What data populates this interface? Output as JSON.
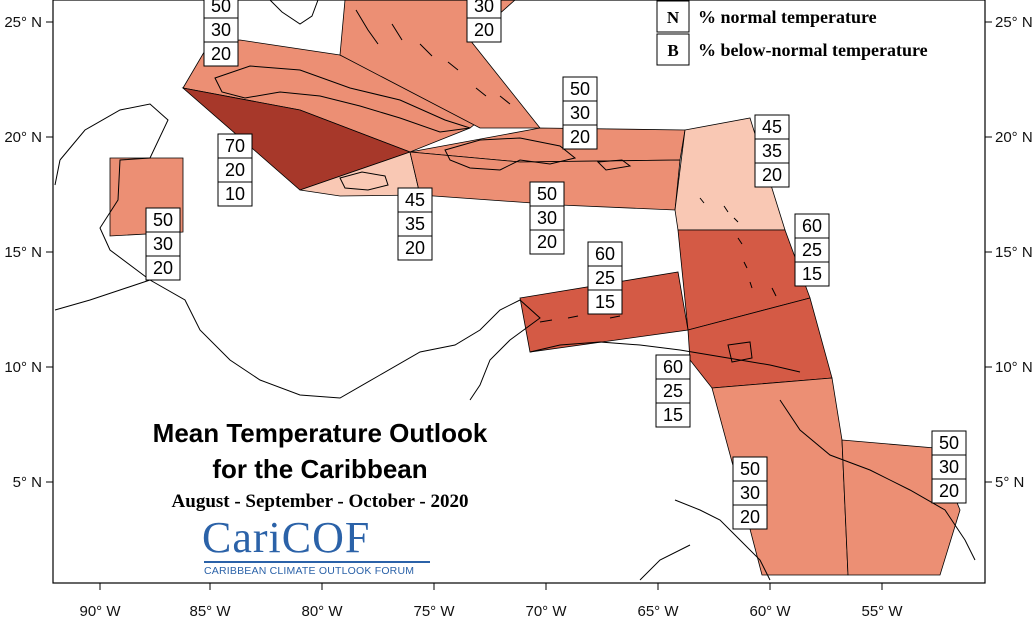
{
  "title": {
    "line1": "Mean Temperature Outlook",
    "line2": "for the Caribbean",
    "period": "August - September - October - 2020"
  },
  "legend": [
    {
      "key": "N",
      "text": "% normal temperature"
    },
    {
      "key": "B",
      "text": "% below-normal temperature"
    }
  ],
  "logo": {
    "name": "CariCOF",
    "tagline": "CARIBBEAN CLIMATE OUTLOOK FORUM"
  },
  "axes": {
    "lon_labels": [
      "90° W",
      "85° W",
      "80° W",
      "75° W",
      "70° W",
      "65° W",
      "60° W",
      "55° W"
    ],
    "lat_labels": [
      "25° N",
      "20° N",
      "15° N",
      "10° N",
      "5° N"
    ]
  },
  "colors": {
    "shade_70": "#a7382a",
    "shade_60": "#d45a45",
    "shade_50": "#ec8f74",
    "shade_45": "#f9c8b4",
    "outline": "#000000",
    "logo_blue": "#2b62a8"
  },
  "probability_boxes": [
    {
      "zone": "bahamas-west",
      "values": [
        "50",
        "30",
        "20"
      ]
    },
    {
      "zone": "bahamas-east",
      "values": [
        "30",
        "20"
      ]
    },
    {
      "zone": "cayman",
      "values": [
        "70",
        "20",
        "10"
      ]
    },
    {
      "zone": "belize",
      "values": [
        "50",
        "30",
        "20"
      ]
    },
    {
      "zone": "jamaica",
      "values": [
        "45",
        "35",
        "20"
      ]
    },
    {
      "zone": "hispaniola",
      "values": [
        "50",
        "30",
        "20"
      ]
    },
    {
      "zone": "greater-antilles-east",
      "values": [
        "50",
        "30",
        "20"
      ]
    },
    {
      "zone": "leeward-islands",
      "values": [
        "45",
        "35",
        "20"
      ]
    },
    {
      "zone": "windward-islands",
      "values": [
        "60",
        "25",
        "15"
      ]
    },
    {
      "zone": "abc-islands",
      "values": [
        "60",
        "25",
        "15"
      ]
    },
    {
      "zone": "trinidad",
      "values": [
        "60",
        "25",
        "15"
      ]
    },
    {
      "zone": "guyana",
      "values": [
        "50",
        "30",
        "20"
      ]
    },
    {
      "zone": "suriname-french-guiana",
      "values": [
        "50",
        "30",
        "20"
      ]
    }
  ]
}
